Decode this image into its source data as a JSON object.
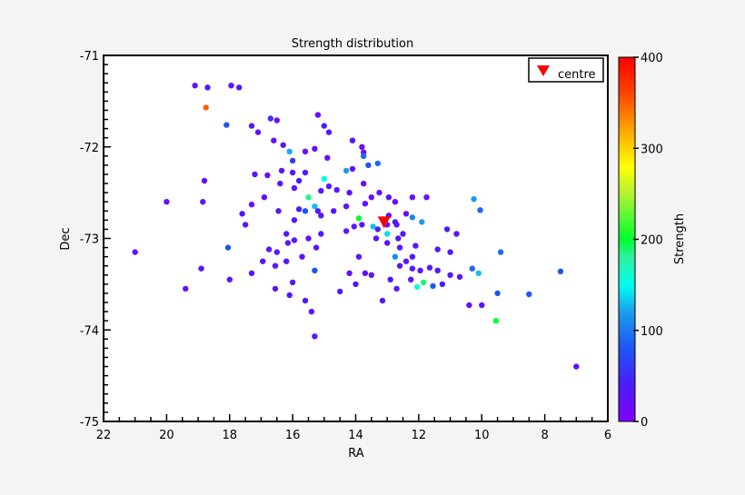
{
  "chart_data": {
    "type": "scatter",
    "title": "Strength distribution",
    "xlabel": "RA",
    "ylabel": "Dec",
    "xlim": [
      22,
      6
    ],
    "ylim": [
      -75,
      -71
    ],
    "x_inverted": true,
    "xticks": [
      22,
      20,
      18,
      16,
      14,
      12,
      10,
      8,
      6
    ],
    "yticks": [
      -71,
      -72,
      -73,
      -74,
      -75
    ],
    "grid": false,
    "colorbar": {
      "label": "Strength",
      "range": [
        0,
        400
      ],
      "ticks": [
        0,
        100,
        200,
        300,
        400
      ],
      "colormap": "rainbow"
    },
    "legend": {
      "position": "upper right",
      "entries": [
        {
          "label": "centre",
          "marker": "red-down-triangle"
        }
      ]
    },
    "centre": {
      "ra": 13.1,
      "dec": -72.83
    },
    "points": [
      {
        "ra": 19.1,
        "dec": -71.33,
        "s": 30
      },
      {
        "ra": 18.7,
        "dec": -71.35,
        "s": 30
      },
      {
        "ra": 17.95,
        "dec": -71.33,
        "s": 25
      },
      {
        "ra": 17.7,
        "dec": -71.35,
        "s": 30
      },
      {
        "ra": 18.75,
        "dec": -71.57,
        "s": 350
      },
      {
        "ra": 18.1,
        "dec": -71.76,
        "s": 80
      },
      {
        "ra": 17.3,
        "dec": -71.77,
        "s": 40
      },
      {
        "ra": 17.1,
        "dec": -71.84,
        "s": 20
      },
      {
        "ra": 16.7,
        "dec": -71.69,
        "s": 55
      },
      {
        "ra": 16.5,
        "dec": -71.71,
        "s": 15
      },
      {
        "ra": 16.6,
        "dec": -71.93,
        "s": 20
      },
      {
        "ra": 16.3,
        "dec": -71.98,
        "s": 35
      },
      {
        "ra": 16.1,
        "dec": -72.05,
        "s": 125
      },
      {
        "ra": 16.0,
        "dec": -72.15,
        "s": 60
      },
      {
        "ra": 15.6,
        "dec": -72.05,
        "s": 20
      },
      {
        "ra": 15.2,
        "dec": -71.65,
        "s": 15
      },
      {
        "ra": 15.0,
        "dec": -71.77,
        "s": 40
      },
      {
        "ra": 14.85,
        "dec": -71.84,
        "s": 30
      },
      {
        "ra": 14.1,
        "dec": -71.93,
        "s": 25
      },
      {
        "ra": 13.8,
        "dec": -72.0,
        "s": 20
      },
      {
        "ra": 13.75,
        "dec": -72.06,
        "s": 20
      },
      {
        "ra": 14.9,
        "dec": -72.12,
        "s": 20
      },
      {
        "ra": 15.3,
        "dec": -72.02,
        "s": 20
      },
      {
        "ra": 15.6,
        "dec": -72.28,
        "s": 30
      },
      {
        "ra": 15.0,
        "dec": -72.35,
        "s": 150
      },
      {
        "ra": 14.3,
        "dec": -72.26,
        "s": 120
      },
      {
        "ra": 14.1,
        "dec": -72.24,
        "s": 30
      },
      {
        "ra": 13.75,
        "dec": -72.1,
        "s": 90
      },
      {
        "ra": 13.6,
        "dec": -72.2,
        "s": 80
      },
      {
        "ra": 13.3,
        "dec": -72.18,
        "s": 90
      },
      {
        "ra": 16.35,
        "dec": -72.26,
        "s": 30
      },
      {
        "ra": 16.0,
        "dec": -72.28,
        "s": 30
      },
      {
        "ra": 15.8,
        "dec": -72.37,
        "s": 40
      },
      {
        "ra": 16.8,
        "dec": -72.31,
        "s": 20
      },
      {
        "ra": 17.2,
        "dec": -72.3,
        "s": 30
      },
      {
        "ra": 18.8,
        "dec": -72.37,
        "s": 20
      },
      {
        "ra": 18.85,
        "dec": -72.6,
        "s": 30
      },
      {
        "ra": 20.0,
        "dec": -72.6,
        "s": 20
      },
      {
        "ra": 16.4,
        "dec": -72.4,
        "s": 30
      },
      {
        "ra": 15.95,
        "dec": -72.45,
        "s": 20
      },
      {
        "ra": 15.5,
        "dec": -72.55,
        "s": 185
      },
      {
        "ra": 15.1,
        "dec": -72.48,
        "s": 30
      },
      {
        "ra": 14.85,
        "dec": -72.43,
        "s": 30
      },
      {
        "ra": 14.6,
        "dec": -72.47,
        "s": 30
      },
      {
        "ra": 14.2,
        "dec": -72.5,
        "s": 25
      },
      {
        "ra": 13.75,
        "dec": -72.4,
        "s": 20
      },
      {
        "ra": 13.5,
        "dec": -72.55,
        "s": 20
      },
      {
        "ra": 13.25,
        "dec": -72.5,
        "s": 20
      },
      {
        "ra": 12.95,
        "dec": -72.55,
        "s": 30
      },
      {
        "ra": 12.75,
        "dec": -72.6,
        "s": 20
      },
      {
        "ra": 16.9,
        "dec": -72.55,
        "s": 20
      },
      {
        "ra": 17.3,
        "dec": -72.63,
        "s": 20
      },
      {
        "ra": 15.8,
        "dec": -72.68,
        "s": 40
      },
      {
        "ra": 15.6,
        "dec": -72.7,
        "s": 80
      },
      {
        "ra": 15.2,
        "dec": -72.7,
        "s": 35
      },
      {
        "ra": 15.1,
        "dec": -72.75,
        "s": 35
      },
      {
        "ra": 13.9,
        "dec": -72.78,
        "s": 200
      },
      {
        "ra": 13.45,
        "dec": -72.87,
        "s": 130
      },
      {
        "ra": 13.0,
        "dec": -72.95,
        "s": 140
      },
      {
        "ra": 13.35,
        "dec": -73.0,
        "s": 30
      },
      {
        "ra": 13.0,
        "dec": -73.05,
        "s": 30
      },
      {
        "ra": 12.65,
        "dec": -73.0,
        "s": 30
      },
      {
        "ra": 12.95,
        "dec": -72.75,
        "s": 20
      },
      {
        "ra": 12.75,
        "dec": -72.82,
        "s": 40
      },
      {
        "ra": 12.7,
        "dec": -72.85,
        "s": 25
      },
      {
        "ra": 12.4,
        "dec": -72.73,
        "s": 25
      },
      {
        "ra": 12.2,
        "dec": -72.77,
        "s": 110
      },
      {
        "ra": 11.9,
        "dec": -72.82,
        "s": 120
      },
      {
        "ra": 11.1,
        "dec": -72.9,
        "s": 40
      },
      {
        "ra": 10.8,
        "dec": -72.95,
        "s": 25
      },
      {
        "ra": 10.25,
        "dec": -72.57,
        "s": 120
      },
      {
        "ra": 10.05,
        "dec": -72.69,
        "s": 90
      },
      {
        "ra": 11.75,
        "dec": -72.55,
        "s": 20
      },
      {
        "ra": 12.2,
        "dec": -72.55,
        "s": 20
      },
      {
        "ra": 12.6,
        "dec": -73.1,
        "s": 30
      },
      {
        "ra": 12.1,
        "dec": -73.08,
        "s": 30
      },
      {
        "ra": 11.4,
        "dec": -73.12,
        "s": 30
      },
      {
        "ra": 11.0,
        "dec": -73.15,
        "s": 35
      },
      {
        "ra": 12.75,
        "dec": -73.2,
        "s": 110
      },
      {
        "ra": 12.4,
        "dec": -73.25,
        "s": 30
      },
      {
        "ra": 12.2,
        "dec": -73.2,
        "s": 35
      },
      {
        "ra": 12.6,
        "dec": -73.3,
        "s": 30
      },
      {
        "ra": 12.2,
        "dec": -73.33,
        "s": 30
      },
      {
        "ra": 11.95,
        "dec": -73.35,
        "s": 30
      },
      {
        "ra": 11.65,
        "dec": -73.32,
        "s": 30
      },
      {
        "ra": 11.4,
        "dec": -73.35,
        "s": 30
      },
      {
        "ra": 11.0,
        "dec": -73.4,
        "s": 30
      },
      {
        "ra": 10.7,
        "dec": -73.42,
        "s": 30
      },
      {
        "ra": 10.3,
        "dec": -73.33,
        "s": 90
      },
      {
        "ra": 10.1,
        "dec": -73.38,
        "s": 130
      },
      {
        "ra": 9.4,
        "dec": -73.15,
        "s": 90
      },
      {
        "ra": 11.85,
        "dec": -73.48,
        "s": 190
      },
      {
        "ra": 12.05,
        "dec": -73.53,
        "s": 160
      },
      {
        "ra": 11.55,
        "dec": -73.52,
        "s": 80
      },
      {
        "ra": 11.25,
        "dec": -73.5,
        "s": 40
      },
      {
        "ra": 9.5,
        "dec": -73.6,
        "s": 80
      },
      {
        "ra": 8.5,
        "dec": -73.61,
        "s": 80
      },
      {
        "ra": 10.4,
        "dec": -73.73,
        "s": 20
      },
      {
        "ra": 10.0,
        "dec": -73.73,
        "s": 25
      },
      {
        "ra": 9.55,
        "dec": -73.9,
        "s": 200
      },
      {
        "ra": 7.5,
        "dec": -73.36,
        "s": 80
      },
      {
        "ra": 7.0,
        "dec": -74.4,
        "s": 20
      },
      {
        "ra": 12.9,
        "dec": -73.45,
        "s": 30
      },
      {
        "ra": 12.7,
        "dec": -73.55,
        "s": 30
      },
      {
        "ra": 13.15,
        "dec": -73.68,
        "s": 30
      },
      {
        "ra": 13.5,
        "dec": -73.4,
        "s": 30
      },
      {
        "ra": 13.7,
        "dec": -73.38,
        "s": 20
      },
      {
        "ra": 14.0,
        "dec": -73.5,
        "s": 35
      },
      {
        "ra": 14.2,
        "dec": -73.38,
        "s": 20
      },
      {
        "ra": 13.9,
        "dec": -73.2,
        "s": 30
      },
      {
        "ra": 14.5,
        "dec": -73.58,
        "s": 30
      },
      {
        "ra": 14.3,
        "dec": -72.92,
        "s": 30
      },
      {
        "ra": 14.05,
        "dec": -72.87,
        "s": 25
      },
      {
        "ra": 15.5,
        "dec": -73.0,
        "s": 20
      },
      {
        "ra": 15.25,
        "dec": -73.1,
        "s": 25
      },
      {
        "ra": 15.1,
        "dec": -72.95,
        "s": 30
      },
      {
        "ra": 15.95,
        "dec": -73.02,
        "s": 30
      },
      {
        "ra": 16.15,
        "dec": -73.05,
        "s": 30
      },
      {
        "ra": 16.5,
        "dec": -73.15,
        "s": 30
      },
      {
        "ra": 16.75,
        "dec": -73.12,
        "s": 25
      },
      {
        "ra": 16.95,
        "dec": -73.25,
        "s": 35
      },
      {
        "ra": 16.55,
        "dec": -73.3,
        "s": 30
      },
      {
        "ra": 16.2,
        "dec": -73.25,
        "s": 30
      },
      {
        "ra": 15.7,
        "dec": -73.2,
        "s": 25
      },
      {
        "ra": 15.3,
        "dec": -73.35,
        "s": 80
      },
      {
        "ra": 16.0,
        "dec": -73.48,
        "s": 30
      },
      {
        "ra": 16.55,
        "dec": -73.55,
        "s": 30
      },
      {
        "ra": 16.1,
        "dec": -73.62,
        "s": 35
      },
      {
        "ra": 15.6,
        "dec": -73.68,
        "s": 30
      },
      {
        "ra": 15.4,
        "dec": -73.8,
        "s": 30
      },
      {
        "ra": 15.3,
        "dec": -74.07,
        "s": 30
      },
      {
        "ra": 17.3,
        "dec": -73.38,
        "s": 30
      },
      {
        "ra": 18.05,
        "dec": -73.1,
        "s": 80
      },
      {
        "ra": 18.9,
        "dec": -73.33,
        "s": 30
      },
      {
        "ra": 19.4,
        "dec": -73.55,
        "s": 20
      },
      {
        "ra": 18.0,
        "dec": -73.45,
        "s": 30
      },
      {
        "ra": 21.0,
        "dec": -73.15,
        "s": 25
      },
      {
        "ra": 17.5,
        "dec": -72.85,
        "s": 30
      },
      {
        "ra": 17.6,
        "dec": -72.73,
        "s": 30
      },
      {
        "ra": 16.2,
        "dec": -72.95,
        "s": 30
      },
      {
        "ra": 16.45,
        "dec": -72.7,
        "s": 30
      },
      {
        "ra": 14.7,
        "dec": -72.7,
        "s": 30
      },
      {
        "ra": 14.3,
        "dec": -72.65,
        "s": 30
      },
      {
        "ra": 13.7,
        "dec": -72.62,
        "s": 20
      },
      {
        "ra": 13.8,
        "dec": -72.85,
        "s": 30
      },
      {
        "ra": 13.3,
        "dec": -72.9,
        "s": 40
      },
      {
        "ra": 13.0,
        "dec": -72.85,
        "s": 30
      },
      {
        "ra": 12.5,
        "dec": -72.95,
        "s": 30
      },
      {
        "ra": 15.95,
        "dec": -72.8,
        "s": 30
      },
      {
        "ra": 15.3,
        "dec": -72.65,
        "s": 130
      },
      {
        "ra": 12.25,
        "dec": -73.45,
        "s": 30
      }
    ]
  }
}
